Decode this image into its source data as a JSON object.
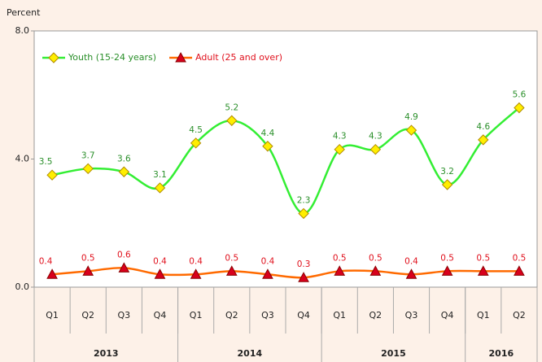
{
  "chart_data": {
    "type": "line",
    "y_label": "Percent",
    "categories": [
      "Q1",
      "Q2",
      "Q3",
      "Q4",
      "Q1",
      "Q2",
      "Q3",
      "Q4",
      "Q1",
      "Q2",
      "Q3",
      "Q4",
      "Q1",
      "Q2"
    ],
    "groups": [
      {
        "label": "2013",
        "count": 4
      },
      {
        "label": "2014",
        "count": 4
      },
      {
        "label": "2015",
        "count": 4
      },
      {
        "label": "2016",
        "count": 2
      }
    ],
    "series": [
      {
        "name": "Youth (15-24 years)",
        "color": "#33ee33",
        "marker_color": "#ffee00",
        "label_color": "#2a8f2a",
        "marker": "diamond",
        "values": [
          3.5,
          3.7,
          3.6,
          3.1,
          4.5,
          5.2,
          4.4,
          2.3,
          4.3,
          4.3,
          4.9,
          3.2,
          4.6,
          5.6
        ]
      },
      {
        "name": "Adult (25 and over)",
        "color": "#ff6a00",
        "marker_color": "#d8001c",
        "label_color": "#e0101c",
        "marker": "triangle",
        "values": [
          0.4,
          0.5,
          0.6,
          0.4,
          0.4,
          0.5,
          0.4,
          0.3,
          0.5,
          0.5,
          0.4,
          0.5,
          0.5,
          0.5
        ]
      }
    ],
    "ylim": [
      0,
      8
    ],
    "yticks": [
      {
        "value": 0,
        "label": "0.0"
      },
      {
        "value": 4,
        "label": "4.0"
      },
      {
        "value": 8,
        "label": "8.0"
      }
    ],
    "legend": "top-left"
  }
}
